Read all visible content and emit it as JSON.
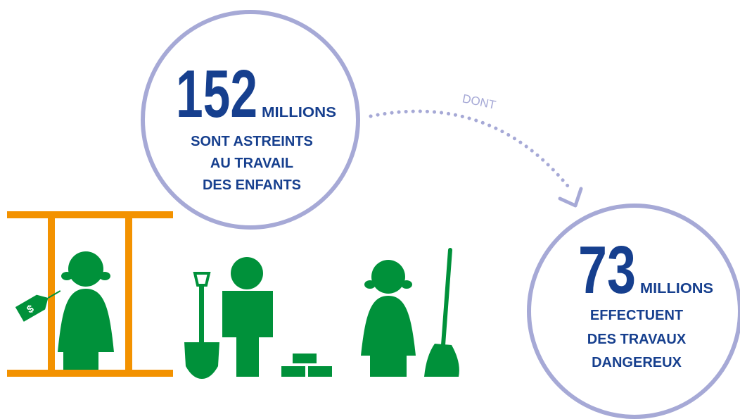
{
  "circles": [
    {
      "number": 152,
      "unit": "MILLIONS",
      "lines": [
        "SONT ASTREINTS",
        "AU TRAVAIL",
        "DES ENFANTS"
      ]
    },
    {
      "number": 73,
      "unit": "MILLIONS",
      "lines": [
        "EFFECTUENT",
        "DES TRAVAUX",
        "DANGEREUX"
      ]
    }
  ],
  "connector": {
    "label": "DONT"
  },
  "price_tag": "$"
}
